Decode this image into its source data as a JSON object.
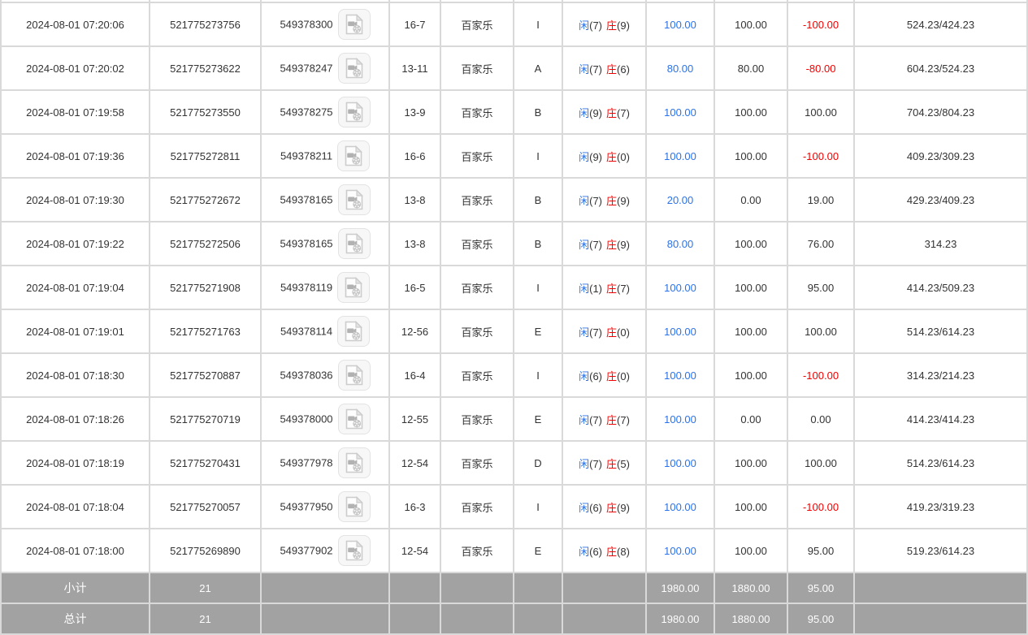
{
  "colors": {
    "bet_blue": "#2b72e8",
    "loss_red": "#f20000",
    "text_dark": "#333333",
    "summary_bg": "#a2a2a2",
    "border_grey": "#d9d9d9"
  },
  "icons": {
    "video": "video-record-icon"
  },
  "table": {
    "rows": [
      {
        "time": "2024-08-01 07:20:06",
        "order_id": "521775273756",
        "round_id": "549378300",
        "table_no": "16-7",
        "game": "百家乐",
        "seat": "I",
        "player_label": "闲",
        "player_score": "(7)",
        "banker_label": "庄",
        "banker_score": "(9)",
        "bet": "100.00",
        "valid": "100.00",
        "winloss": "-100.00",
        "balance": "524.23/424.23"
      },
      {
        "time": "2024-08-01 07:20:02",
        "order_id": "521775273622",
        "round_id": "549378247",
        "table_no": "13-11",
        "game": "百家乐",
        "seat": "A",
        "player_label": "闲",
        "player_score": "(7)",
        "banker_label": "庄",
        "banker_score": "(6)",
        "bet": "80.00",
        "valid": "80.00",
        "winloss": "-80.00",
        "balance": "604.23/524.23"
      },
      {
        "time": "2024-08-01 07:19:58",
        "order_id": "521775273550",
        "round_id": "549378275",
        "table_no": "13-9",
        "game": "百家乐",
        "seat": "B",
        "player_label": "闲",
        "player_score": "(9)",
        "banker_label": "庄",
        "banker_score": "(7)",
        "bet": "100.00",
        "valid": "100.00",
        "winloss": "100.00",
        "balance": "704.23/804.23"
      },
      {
        "time": "2024-08-01 07:19:36",
        "order_id": "521775272811",
        "round_id": "549378211",
        "table_no": "16-6",
        "game": "百家乐",
        "seat": "I",
        "player_label": "闲",
        "player_score": "(9)",
        "banker_label": "庄",
        "banker_score": "(0)",
        "bet": "100.00",
        "valid": "100.00",
        "winloss": "-100.00",
        "balance": "409.23/309.23"
      },
      {
        "time": "2024-08-01 07:19:30",
        "order_id": "521775272672",
        "round_id": "549378165",
        "table_no": "13-8",
        "game": "百家乐",
        "seat": "B",
        "player_label": "闲",
        "player_score": "(7)",
        "banker_label": "庄",
        "banker_score": "(9)",
        "bet": "20.00",
        "valid": "0.00",
        "winloss": "19.00",
        "balance": "429.23/409.23"
      },
      {
        "time": "2024-08-01 07:19:22",
        "order_id": "521775272506",
        "round_id": "549378165",
        "table_no": "13-8",
        "game": "百家乐",
        "seat": "B",
        "player_label": "闲",
        "player_score": "(7)",
        "banker_label": "庄",
        "banker_score": "(9)",
        "bet": "80.00",
        "valid": "100.00",
        "winloss": "76.00",
        "balance": "314.23"
      },
      {
        "time": "2024-08-01 07:19:04",
        "order_id": "521775271908",
        "round_id": "549378119",
        "table_no": "16-5",
        "game": "百家乐",
        "seat": "I",
        "player_label": "闲",
        "player_score": "(1)",
        "banker_label": "庄",
        "banker_score": "(7)",
        "bet": "100.00",
        "valid": "100.00",
        "winloss": "95.00",
        "balance": "414.23/509.23"
      },
      {
        "time": "2024-08-01 07:19:01",
        "order_id": "521775271763",
        "round_id": "549378114",
        "table_no": "12-56",
        "game": "百家乐",
        "seat": "E",
        "player_label": "闲",
        "player_score": "(7)",
        "banker_label": "庄",
        "banker_score": "(0)",
        "bet": "100.00",
        "valid": "100.00",
        "winloss": "100.00",
        "balance": "514.23/614.23"
      },
      {
        "time": "2024-08-01 07:18:30",
        "order_id": "521775270887",
        "round_id": "549378036",
        "table_no": "16-4",
        "game": "百家乐",
        "seat": "I",
        "player_label": "闲",
        "player_score": "(6)",
        "banker_label": "庄",
        "banker_score": "(0)",
        "bet": "100.00",
        "valid": "100.00",
        "winloss": "-100.00",
        "balance": "314.23/214.23"
      },
      {
        "time": "2024-08-01 07:18:26",
        "order_id": "521775270719",
        "round_id": "549378000",
        "table_no": "12-55",
        "game": "百家乐",
        "seat": "E",
        "player_label": "闲",
        "player_score": "(7)",
        "banker_label": "庄",
        "banker_score": "(7)",
        "bet": "100.00",
        "valid": "0.00",
        "winloss": "0.00",
        "balance": "414.23/414.23"
      },
      {
        "time": "2024-08-01 07:18:19",
        "order_id": "521775270431",
        "round_id": "549377978",
        "table_no": "12-54",
        "game": "百家乐",
        "seat": "D",
        "player_label": "闲",
        "player_score": "(7)",
        "banker_label": "庄",
        "banker_score": "(5)",
        "bet": "100.00",
        "valid": "100.00",
        "winloss": "100.00",
        "balance": "514.23/614.23"
      },
      {
        "time": "2024-08-01 07:18:04",
        "order_id": "521775270057",
        "round_id": "549377950",
        "table_no": "16-3",
        "game": "百家乐",
        "seat": "I",
        "player_label": "闲",
        "player_score": "(6)",
        "banker_label": "庄",
        "banker_score": "(9)",
        "bet": "100.00",
        "valid": "100.00",
        "winloss": "-100.00",
        "balance": "419.23/319.23"
      },
      {
        "time": "2024-08-01 07:18:00",
        "order_id": "521775269890",
        "round_id": "549377902",
        "table_no": "12-54",
        "game": "百家乐",
        "seat": "E",
        "player_label": "闲",
        "player_score": "(6)",
        "banker_label": "庄",
        "banker_score": "(8)",
        "bet": "100.00",
        "valid": "100.00",
        "winloss": "95.00",
        "balance": "519.23/614.23"
      }
    ],
    "summary_rows": [
      {
        "label": "小计",
        "count": "21",
        "bet": "1980.00",
        "valid": "1880.00",
        "winloss": "95.00"
      },
      {
        "label": "总计",
        "count": "21",
        "bet": "1980.00",
        "valid": "1880.00",
        "winloss": "95.00"
      }
    ]
  }
}
